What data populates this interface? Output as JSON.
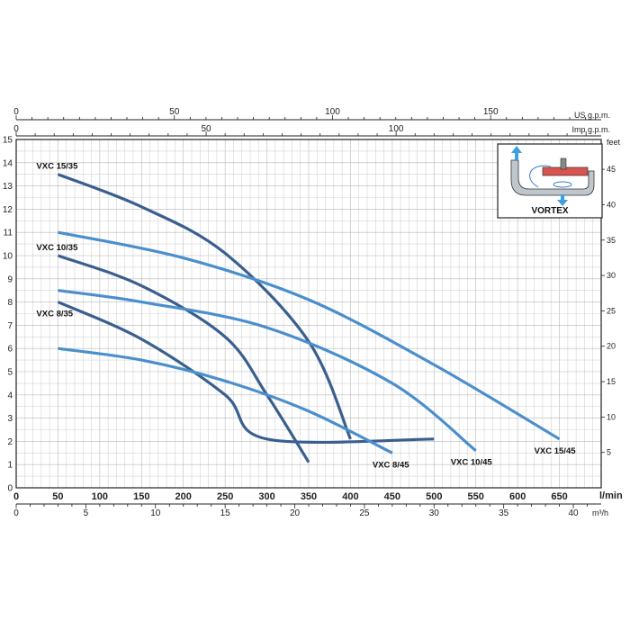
{
  "chart_data": {
    "type": "line",
    "title": "",
    "xlabel": "l/min",
    "ylabel": "",
    "xlim": [
      0,
      700
    ],
    "ylim": [
      0,
      15
    ],
    "grid": true,
    "x_ticks": [
      0,
      50,
      100,
      150,
      200,
      250,
      300,
      350,
      400,
      450,
      500,
      550,
      600,
      650
    ],
    "y_ticks": [
      0,
      1,
      2,
      3,
      4,
      5,
      6,
      7,
      8,
      9,
      10,
      11,
      12,
      13,
      14,
      15
    ],
    "x_unit": "l/min",
    "secondary_axes": {
      "top_us": {
        "label": "US g.p.m.",
        "ticks": [
          0,
          50,
          100,
          150
        ]
      },
      "top_imp": {
        "label": "Imp g.p.m.",
        "ticks": [
          0,
          50,
          100
        ]
      },
      "right_feet": {
        "label": "feet",
        "ticks": [
          5,
          10,
          15,
          20,
          25,
          30,
          35,
          40,
          45
        ]
      },
      "bottom_m3h": {
        "label": "m³/h",
        "ticks": [
          0,
          5,
          10,
          15,
          20,
          25,
          30,
          35,
          40
        ]
      }
    },
    "series": [
      {
        "name": "VXC 15/35",
        "color": "#3a5f8f",
        "x": [
          50,
          150,
          250,
          350,
          400
        ],
        "y": [
          13.5,
          12.1,
          10.1,
          6.3,
          2.1
        ]
      },
      {
        "name": "VXC 15/45",
        "color": "#4a8fcc",
        "x": [
          50,
          200,
          350,
          500,
          650
        ],
        "y": [
          11.0,
          9.9,
          8.1,
          5.3,
          2.1
        ]
      },
      {
        "name": "VXC 10/35",
        "color": "#3a5f8f",
        "x": [
          50,
          150,
          250,
          300,
          350
        ],
        "y": [
          10.0,
          8.7,
          6.5,
          4.0,
          1.1
        ]
      },
      {
        "name": "VXC 10/45",
        "color": "#4a8fcc",
        "x": [
          50,
          150,
          300,
          450,
          550
        ],
        "y": [
          8.5,
          8.0,
          6.9,
          4.5,
          1.6
        ]
      },
      {
        "name": "VXC 8/35",
        "color": "#3a5f8f",
        "x": [
          50,
          150,
          250,
          300,
          500
        ],
        "y": [
          8.0,
          6.4,
          4.0,
          2.1,
          2.1
        ]
      },
      {
        "name": "VXC 8/45",
        "color": "#4a8fcc",
        "x": [
          50,
          150,
          250,
          350,
          450
        ],
        "y": [
          6.0,
          5.5,
          4.6,
          3.3,
          1.5
        ]
      }
    ]
  },
  "inset": {
    "label": "VORTEX"
  }
}
